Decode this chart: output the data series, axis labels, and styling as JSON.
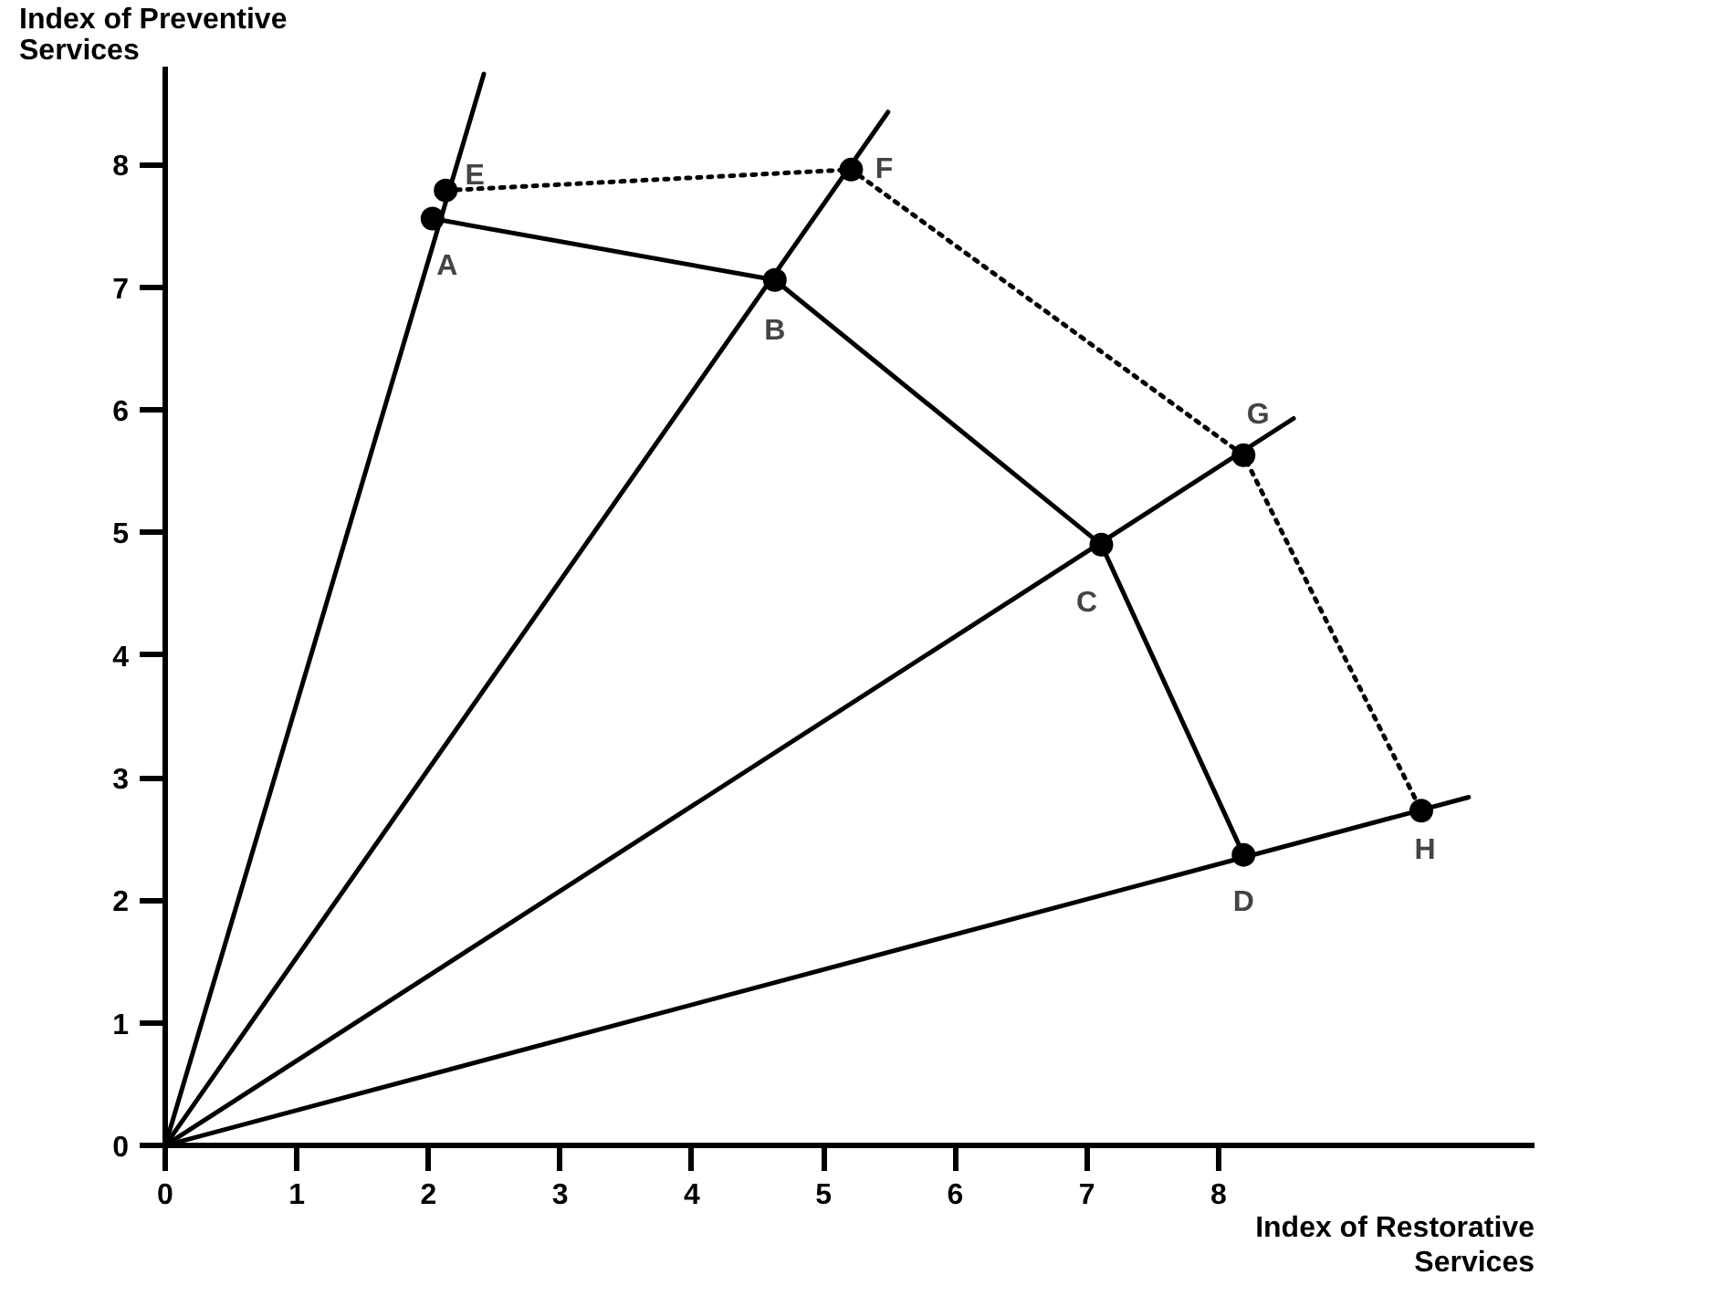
{
  "chart_data": {
    "type": "line",
    "xlabel": "Index of Restorative Services",
    "ylabel": "Index of Preventive Services",
    "xlim": [
      0,
      10.4
    ],
    "ylim": [
      0,
      8.8
    ],
    "xticks": [
      0,
      1,
      2,
      3,
      4,
      5,
      6,
      7,
      8
    ],
    "yticks": [
      0,
      1,
      2,
      3,
      4,
      5,
      6,
      7,
      8
    ],
    "grid": false,
    "series": [
      {
        "x": [
          0,
          2.42
        ],
        "values": [
          0,
          8.74
        ],
        "color": "#000000",
        "marker": "none",
        "line_style": "solid"
      },
      {
        "x": [
          0,
          5.49
        ],
        "values": [
          0,
          8.43
        ],
        "color": "#000000",
        "marker": "none",
        "line_style": "solid"
      },
      {
        "x": [
          0,
          8.57
        ],
        "values": [
          0,
          5.93
        ],
        "color": "#000000",
        "marker": "none",
        "line_style": "solid"
      },
      {
        "x": [
          0,
          9.9
        ],
        "values": [
          0,
          2.84
        ],
        "color": "#000000",
        "marker": "none",
        "line_style": "solid"
      },
      {
        "x": [
          2.03,
          4.63,
          7.11,
          8.19
        ],
        "values": [
          7.56,
          7.06,
          4.9,
          2.37
        ],
        "color": "#000000",
        "marker": "circle",
        "line_style": "solid"
      },
      {
        "x": [
          2.13,
          5.21,
          8.19,
          9.54
        ],
        "values": [
          7.79,
          7.96,
          5.63,
          2.73
        ],
        "color": "#000000",
        "marker": "circle",
        "line_style": "dotted"
      }
    ],
    "annotations": [
      {
        "text": "A",
        "x": 2.03,
        "y": 7.56
      },
      {
        "text": "E",
        "x": 2.13,
        "y": 7.79
      },
      {
        "text": "B",
        "x": 4.63,
        "y": 7.06
      },
      {
        "text": "F",
        "x": 5.21,
        "y": 7.96
      },
      {
        "text": "C",
        "x": 7.11,
        "y": 4.9
      },
      {
        "text": "G",
        "x": 8.19,
        "y": 5.63
      },
      {
        "text": "D",
        "x": 8.19,
        "y": 2.37
      },
      {
        "text": "H",
        "x": 9.54,
        "y": 2.73
      }
    ]
  }
}
